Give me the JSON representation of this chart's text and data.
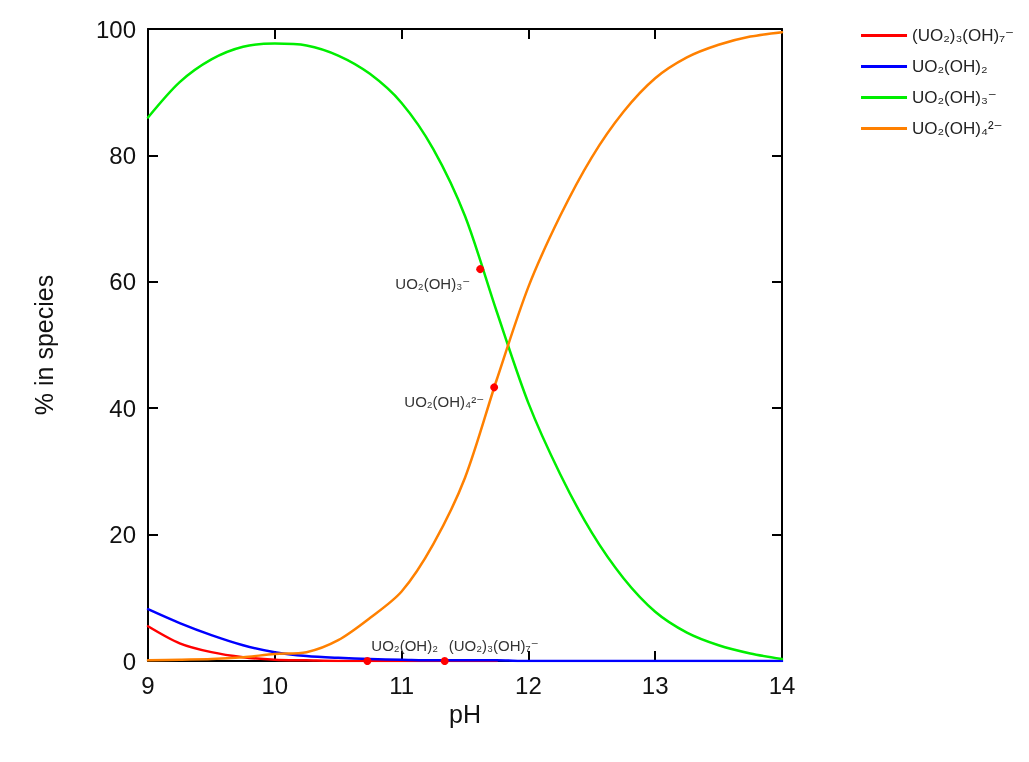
{
  "chart_data": {
    "type": "line",
    "xlabel": "pH",
    "ylabel": "% in species",
    "x": [
      9,
      9.25,
      9.5,
      9.75,
      10,
      10.25,
      10.5,
      10.75,
      11,
      11.25,
      11.5,
      11.75,
      12,
      12.25,
      12.5,
      12.75,
      13,
      13.25,
      13.5,
      13.75,
      14
    ],
    "series": [
      {
        "name": "(UO₂)₃(OH)₇⁻",
        "color": "#ff0000",
        "values": [
          5.5,
          2.8,
          1.4,
          0.6,
          0.2,
          0.1,
          0,
          0,
          0,
          0,
          0,
          0,
          null,
          null,
          null,
          null,
          null,
          null,
          null,
          null,
          null
        ]
      },
      {
        "name": "UO₂(OH)₂",
        "color": "#0000ff",
        "values": [
          8.2,
          6,
          4.1,
          2.5,
          1.4,
          0.8,
          0.5,
          0.3,
          0.2,
          0.1,
          0.1,
          0.1,
          0,
          0,
          0,
          0,
          0,
          0,
          0,
          0,
          0
        ]
      },
      {
        "name": "UO₂(OH)₃⁻",
        "color": "#00ee00",
        "values": [
          86,
          91.6,
          95.2,
          97.2,
          97.7,
          97.4,
          95.8,
          92.9,
          88.3,
          81,
          70.4,
          55.3,
          40.8,
          29.6,
          20.3,
          13.1,
          7.8,
          4.5,
          2.5,
          1.2,
          0.3
        ]
      },
      {
        "name": "UO₂(OH)₄²⁻",
        "color": "#ff8000",
        "values": [
          0.1,
          0.2,
          0.3,
          0.6,
          1.1,
          1.4,
          3.3,
          6.8,
          11,
          18.5,
          29,
          44.5,
          59.2,
          70.4,
          79.7,
          86.9,
          92.2,
          95.5,
          97.5,
          98.8,
          99.5
        ]
      }
    ],
    "xlim": [
      9,
      14
    ],
    "xticks": [
      9,
      10,
      11,
      12,
      13,
      14
    ],
    "ylim": [
      0,
      100
    ],
    "yticks": [
      0,
      20,
      40,
      60,
      80,
      100
    ],
    "grid": false,
    "legend": "top right",
    "marker": "none",
    "line_style": "solid",
    "annotations": [
      {
        "text": "UO₂(OH)₃⁻",
        "x": 11.62,
        "y": 62
      },
      {
        "text": "UO₂(OH)₄²⁻",
        "x": 11.73,
        "y": 43.3
      },
      {
        "text": "UO₂(OH)₂",
        "x": 10.73,
        "y": 0
      },
      {
        "text": "(UO₂)₃(OH)₇⁻",
        "x": 11.34,
        "y": 0
      }
    ]
  }
}
